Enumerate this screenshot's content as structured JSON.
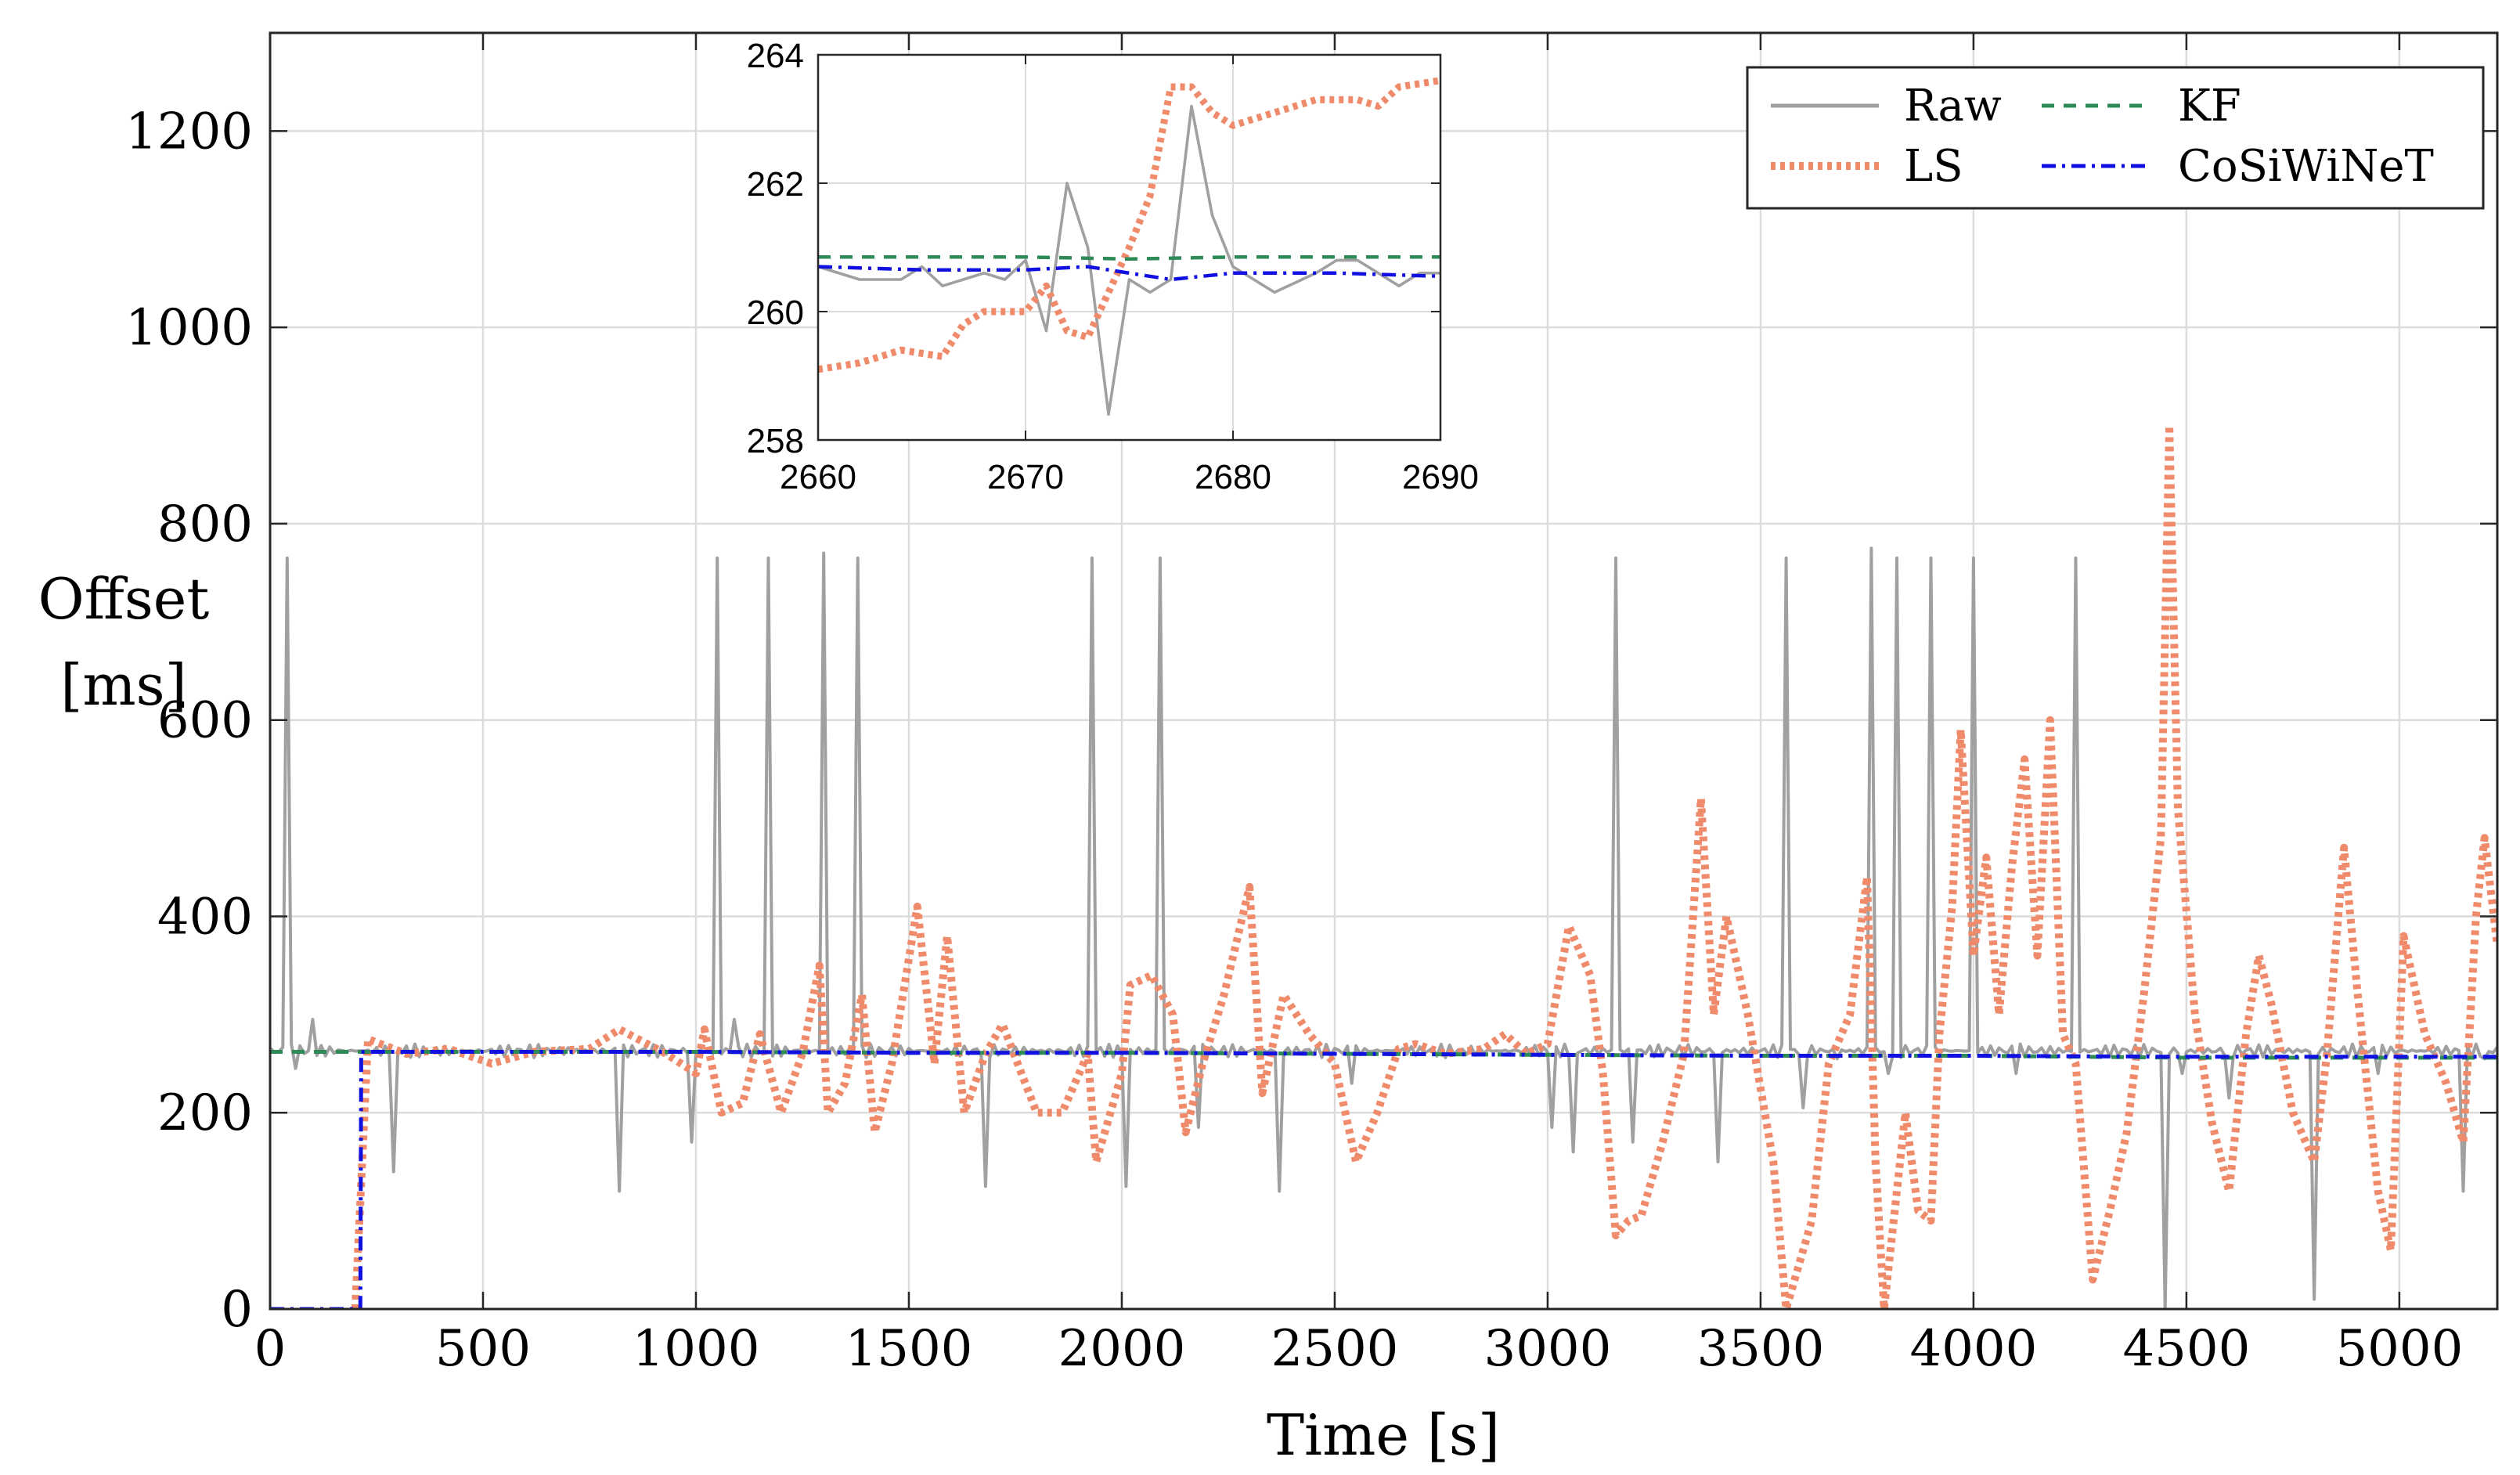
{
  "chart_data": {
    "type": "line",
    "main": {
      "xlabel": "Time [s]",
      "ylabel_line1": "Offset",
      "ylabel_line2": "[ms]",
      "xlim": [
        0,
        5230
      ],
      "ylim": [
        0,
        1300
      ],
      "xticks": [
        0,
        500,
        1000,
        1500,
        2000,
        2500,
        3000,
        3500,
        4000,
        4500,
        5000
      ],
      "yticks": [
        0,
        200,
        400,
        600,
        800,
        1000,
        1200
      ],
      "grid": true,
      "legend_position": "top-right",
      "series": [
        {
          "name": "Raw",
          "color": "#a0a0a0",
          "style": "solid",
          "baseline": 263,
          "spikes": [
            [
              40,
              765
            ],
            [
              55,
              245
            ],
            [
              100,
              295
            ],
            [
              290,
              140
            ],
            [
              815,
              120
            ],
            [
              990,
              170
            ],
            [
              1050,
              765
            ],
            [
              1090,
              295
            ],
            [
              1170,
              765
            ],
            [
              1300,
              770
            ],
            [
              1380,
              765
            ],
            [
              1680,
              125
            ],
            [
              1930,
              765
            ],
            [
              2010,
              125
            ],
            [
              2090,
              765
            ],
            [
              2180,
              185
            ],
            [
              2370,
              120
            ],
            [
              2540,
              230
            ],
            [
              3010,
              185
            ],
            [
              3060,
              160
            ],
            [
              3160,
              765
            ],
            [
              3200,
              170
            ],
            [
              3400,
              150
            ],
            [
              3560,
              765
            ],
            [
              3600,
              205
            ],
            [
              3680,
              255
            ],
            [
              3760,
              775
            ],
            [
              3800,
              240
            ],
            [
              3820,
              765
            ],
            [
              3900,
              765
            ],
            [
              4000,
              765
            ],
            [
              4100,
              240
            ],
            [
              4240,
              765
            ],
            [
              4450,
              0
            ],
            [
              4490,
              240
            ],
            [
              4600,
              215
            ],
            [
              4800,
              10
            ],
            [
              4950,
              240
            ],
            [
              5150,
              120
            ],
            [
              5200,
              255
            ]
          ]
        },
        {
          "name": "LS",
          "color": "#ef8a6b",
          "style": "dotted",
          "points": [
            [
              200,
              0
            ],
            [
              230,
              275
            ],
            [
              320,
              260
            ],
            [
              420,
              265
            ],
            [
              520,
              250
            ],
            [
              620,
              262
            ],
            [
              750,
              265
            ],
            [
              820,
              285
            ],
            [
              930,
              260
            ],
            [
              1000,
              240
            ],
            [
              1020,
              285
            ],
            [
              1060,
              200
            ],
            [
              1110,
              210
            ],
            [
              1150,
              280
            ],
            [
              1200,
              200
            ],
            [
              1250,
              260
            ],
            [
              1290,
              350
            ],
            [
              1310,
              200
            ],
            [
              1350,
              230
            ],
            [
              1390,
              320
            ],
            [
              1420,
              180
            ],
            [
              1460,
              250
            ],
            [
              1520,
              410
            ],
            [
              1560,
              250
            ],
            [
              1590,
              380
            ],
            [
              1630,
              200
            ],
            [
              1680,
              260
            ],
            [
              1720,
              290
            ],
            [
              1800,
              200
            ],
            [
              1860,
              200
            ],
            [
              1920,
              260
            ],
            [
              1940,
              150
            ],
            [
              2000,
              240
            ],
            [
              2020,
              330
            ],
            [
              2070,
              340
            ],
            [
              2120,
              300
            ],
            [
              2150,
              180
            ],
            [
              2190,
              250
            ],
            [
              2240,
              320
            ],
            [
              2300,
              430
            ],
            [
              2330,
              220
            ],
            [
              2380,
              320
            ],
            [
              2440,
              280
            ],
            [
              2500,
              250
            ],
            [
              2550,
              150
            ],
            [
              2600,
              200
            ],
            [
              2650,
              265
            ],
            [
              2690,
              270
            ],
            [
              2760,
              260
            ],
            [
              2850,
              265
            ],
            [
              2900,
              280
            ],
            [
              2950,
              260
            ],
            [
              3000,
              270
            ],
            [
              3050,
              390
            ],
            [
              3100,
              340
            ],
            [
              3130,
              240
            ],
            [
              3160,
              75
            ],
            [
              3190,
              90
            ],
            [
              3220,
              95
            ],
            [
              3270,
              170
            ],
            [
              3320,
              260
            ],
            [
              3360,
              520
            ],
            [
              3390,
              300
            ],
            [
              3420,
              400
            ],
            [
              3470,
              300
            ],
            [
              3530,
              150
            ],
            [
              3560,
              0
            ],
            [
              3620,
              90
            ],
            [
              3660,
              250
            ],
            [
              3710,
              300
            ],
            [
              3750,
              440
            ],
            [
              3770,
              150
            ],
            [
              3790,
              0
            ],
            [
              3840,
              200
            ],
            [
              3870,
              100
            ],
            [
              3900,
              90
            ],
            [
              3920,
              280
            ],
            [
              3950,
              410
            ],
            [
              3970,
              590
            ],
            [
              4000,
              360
            ],
            [
              4030,
              460
            ],
            [
              4060,
              300
            ],
            [
              4090,
              450
            ],
            [
              4120,
              560
            ],
            [
              4150,
              360
            ],
            [
              4180,
              600
            ],
            [
              4210,
              280
            ],
            [
              4240,
              250
            ],
            [
              4280,
              30
            ],
            [
              4320,
              100
            ],
            [
              4360,
              180
            ],
            [
              4400,
              320
            ],
            [
              4440,
              480
            ],
            [
              4460,
              900
            ],
            [
              4480,
              510
            ],
            [
              4520,
              300
            ],
            [
              4560,
              190
            ],
            [
              4600,
              120
            ],
            [
              4640,
              280
            ],
            [
              4670,
              360
            ],
            [
              4700,
              310
            ],
            [
              4750,
              200
            ],
            [
              4800,
              150
            ],
            [
              4830,
              260
            ],
            [
              4870,
              470
            ],
            [
              4900,
              330
            ],
            [
              4950,
              120
            ],
            [
              4980,
              60
            ],
            [
              5010,
              380
            ],
            [
              5060,
              280
            ],
            [
              5110,
              230
            ],
            [
              5150,
              170
            ],
            [
              5180,
              400
            ],
            [
              5200,
              480
            ],
            [
              5230,
              370
            ]
          ]
        },
        {
          "name": "KF",
          "color": "#2e8b57",
          "style": "dashed",
          "points": [
            [
              0,
              262
            ],
            [
              500,
              262
            ],
            [
              1000,
              262
            ],
            [
              1500,
              261
            ],
            [
              2000,
              261
            ],
            [
              2500,
              260
            ],
            [
              3000,
              259
            ],
            [
              3500,
              258
            ],
            [
              4000,
              258
            ],
            [
              4500,
              256
            ],
            [
              5000,
              256
            ],
            [
              5230,
              256
            ]
          ]
        },
        {
          "name": "CoSiWiNeT",
          "color": "#1010e0",
          "style": "dashdot",
          "points": [
            [
              0,
              0
            ],
            [
              212,
              0
            ],
            [
              214,
              262
            ],
            [
              500,
              262
            ],
            [
              1000,
              262
            ],
            [
              1500,
              261
            ],
            [
              2000,
              261
            ],
            [
              2500,
              260
            ],
            [
              3000,
              259
            ],
            [
              3500,
              258
            ],
            [
              4000,
              258
            ],
            [
              4500,
              257
            ],
            [
              5000,
              257
            ],
            [
              5230,
              257
            ]
          ]
        }
      ]
    },
    "inset": {
      "xlim": [
        2660,
        2690
      ],
      "ylim": [
        258,
        264
      ],
      "xticks": [
        2660,
        2670,
        2680,
        2690
      ],
      "yticks": [
        258,
        260,
        262,
        264
      ],
      "grid": true,
      "series": [
        {
          "name": "Raw",
          "color": "#a0a0a0",
          "style": "solid",
          "points": [
            [
              2660,
              260.7
            ],
            [
              2662,
              260.5
            ],
            [
              2664,
              260.5
            ],
            [
              2665,
              260.7
            ],
            [
              2666,
              260.4
            ],
            [
              2667,
              260.5
            ],
            [
              2668,
              260.6
            ],
            [
              2669,
              260.5
            ],
            [
              2670,
              260.8
            ],
            [
              2671,
              259.7
            ],
            [
              2672,
              262.0
            ],
            [
              2673,
              261.0
            ],
            [
              2674,
              258.4
            ],
            [
              2675,
              260.5
            ],
            [
              2676,
              260.3
            ],
            [
              2677,
              260.5
            ],
            [
              2678,
              263.2
            ],
            [
              2679,
              261.5
            ],
            [
              2680,
              260.7
            ],
            [
              2682,
              260.3
            ],
            [
              2684,
              260.6
            ],
            [
              2685,
              260.8
            ],
            [
              2686,
              260.8
            ],
            [
              2688,
              260.4
            ],
            [
              2689,
              260.6
            ],
            [
              2690,
              260.6
            ]
          ]
        },
        {
          "name": "LS",
          "color": "#ef8a6b",
          "style": "dotted",
          "points": [
            [
              2660,
              259.1
            ],
            [
              2662,
              259.2
            ],
            [
              2664,
              259.4
            ],
            [
              2666,
              259.3
            ],
            [
              2667,
              259.8
            ],
            [
              2668,
              260.0
            ],
            [
              2670,
              260.0
            ],
            [
              2671,
              260.4
            ],
            [
              2672,
              259.7
            ],
            [
              2673,
              259.6
            ],
            [
              2674,
              260.3
            ],
            [
              2675,
              261.0
            ],
            [
              2676,
              261.8
            ],
            [
              2677,
              263.5
            ],
            [
              2678,
              263.5
            ],
            [
              2679,
              263.1
            ],
            [
              2680,
              262.9
            ],
            [
              2682,
              263.1
            ],
            [
              2684,
              263.3
            ],
            [
              2686,
              263.3
            ],
            [
              2687,
              263.2
            ],
            [
              2688,
              263.5
            ],
            [
              2690,
              263.6
            ]
          ]
        },
        {
          "name": "KF",
          "color": "#2e8b57",
          "style": "dashed",
          "points": [
            [
              2660,
              260.85
            ],
            [
              2670,
              260.85
            ],
            [
              2675,
              260.82
            ],
            [
              2680,
              260.85
            ],
            [
              2690,
              260.85
            ]
          ]
        },
        {
          "name": "CoSiWiNeT",
          "color": "#1010e0",
          "style": "dashdot",
          "points": [
            [
              2660,
              260.7
            ],
            [
              2665,
              260.65
            ],
            [
              2670,
              260.65
            ],
            [
              2673,
              260.7
            ],
            [
              2675,
              260.6
            ],
            [
              2677,
              260.5
            ],
            [
              2680,
              260.6
            ],
            [
              2685,
              260.6
            ],
            [
              2690,
              260.55
            ]
          ]
        }
      ]
    },
    "legend": [
      "Raw",
      "KF",
      "LS",
      "CoSiWiNeT"
    ]
  }
}
